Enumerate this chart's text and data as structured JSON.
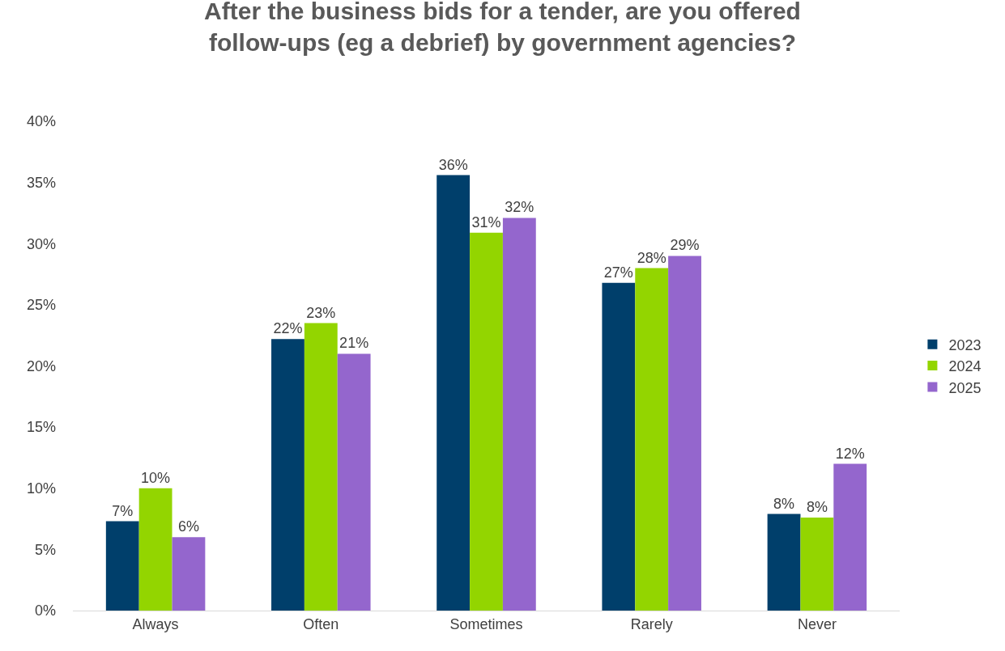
{
  "chart_data": {
    "type": "bar",
    "title": "After the business bids for a tender, are you offered follow-ups (eg a debrief) by government agencies?",
    "categories": [
      "Always",
      "Often",
      "Sometimes",
      "Rarely",
      "Never"
    ],
    "series": [
      {
        "name": "2023",
        "color": "#003f6b",
        "values": [
          7.3,
          22.2,
          35.6,
          26.8,
          7.9
        ],
        "value_labels": [
          "7%",
          "22%",
          "36%",
          "27%",
          "8%"
        ]
      },
      {
        "name": "2024",
        "color": "#93d500",
        "values": [
          10.0,
          23.5,
          30.9,
          28.0,
          7.6
        ],
        "value_labels": [
          "10%",
          "23%",
          "31%",
          "28%",
          "8%"
        ]
      },
      {
        "name": "2025",
        "color": "#9466cd",
        "values": [
          6.0,
          21.0,
          32.1,
          29.0,
          12.0
        ],
        "value_labels": [
          "6%",
          "21%",
          "32%",
          "29%",
          "12%"
        ]
      }
    ],
    "ylim": [
      0,
      40
    ],
    "yticks": [
      {
        "value": 0,
        "label": "0%"
      },
      {
        "value": 5,
        "label": "5%"
      },
      {
        "value": 10,
        "label": "10%"
      },
      {
        "value": 15,
        "label": "15%"
      },
      {
        "value": 20,
        "label": "20%"
      },
      {
        "value": 25,
        "label": "25%"
      },
      {
        "value": 30,
        "label": "30%"
      },
      {
        "value": 35,
        "label": "35%"
      },
      {
        "value": 40,
        "label": "40%"
      }
    ],
    "grid": false,
    "legend": "right"
  }
}
